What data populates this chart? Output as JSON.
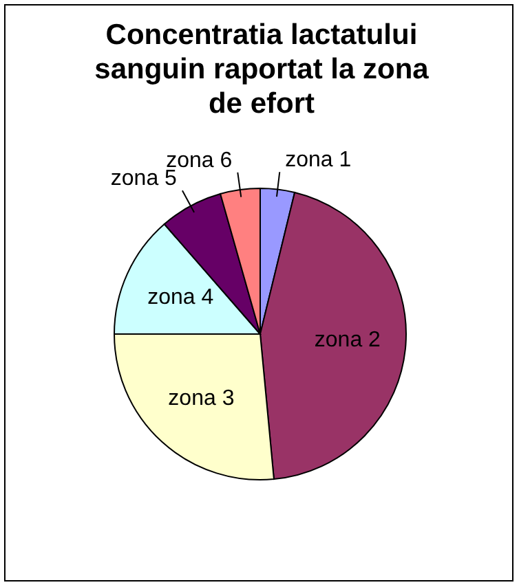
{
  "chart_data": {
    "type": "pie",
    "title": "Concentratia lactatului sanguin raportat la zona de efort",
    "categories": [
      "zona 1",
      "zona 2",
      "zona 3",
      "zona 4",
      "zona 5",
      "zona 6"
    ],
    "values": [
      3.8,
      44.7,
      26.5,
      13.6,
      7,
      4.4
    ],
    "colors": [
      "#9999ff",
      "#993366",
      "#ffffcc",
      "#ccffff",
      "#660066",
      "#ff8080"
    ]
  }
}
